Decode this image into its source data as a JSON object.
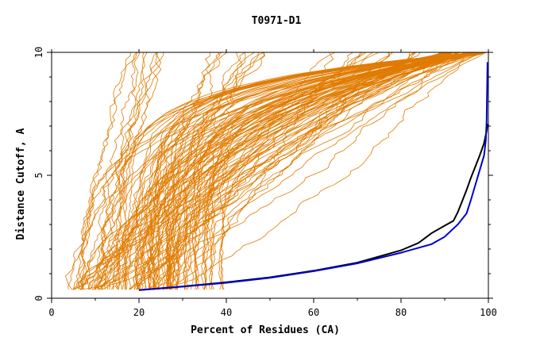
{
  "chart_data": {
    "type": "line",
    "title": "T0971-D1",
    "xlabel": "Percent of Residues (CA)",
    "ylabel": "Distance Cutoff, A",
    "xlim": [
      0,
      100
    ],
    "ylim": [
      0,
      10
    ],
    "x_ticks": [
      "0",
      "20",
      "40",
      "60",
      "80",
      "100"
    ],
    "y_ticks": [
      "0",
      "5",
      "10"
    ],
    "grid": false,
    "background_colors": {
      "orange": "#e07b00"
    },
    "highlight_series": [
      {
        "color": "#000000",
        "points": [
          [
            20,
            0.33
          ],
          [
            30,
            0.48
          ],
          [
            40,
            0.65
          ],
          [
            50,
            0.85
          ],
          [
            60,
            1.12
          ],
          [
            70,
            1.45
          ],
          [
            80,
            1.95
          ],
          [
            84,
            2.25
          ],
          [
            87,
            2.65
          ],
          [
            90,
            2.95
          ],
          [
            92,
            3.15
          ],
          [
            93,
            3.5
          ],
          [
            94,
            3.95
          ],
          [
            95,
            4.4
          ],
          [
            96,
            4.9
          ],
          [
            97,
            5.35
          ],
          [
            98,
            5.8
          ],
          [
            99,
            6.3
          ],
          [
            99.6,
            6.8
          ],
          [
            99.8,
            7.1
          ]
        ]
      },
      {
        "color": "#0000cc",
        "points": [
          [
            20,
            0.33
          ],
          [
            30,
            0.47
          ],
          [
            40,
            0.63
          ],
          [
            50,
            0.83
          ],
          [
            60,
            1.1
          ],
          [
            70,
            1.42
          ],
          [
            80,
            1.85
          ],
          [
            87,
            2.2
          ],
          [
            90,
            2.5
          ],
          [
            93,
            3.0
          ],
          [
            95,
            3.45
          ],
          [
            96,
            4.0
          ],
          [
            97,
            4.6
          ],
          [
            98,
            5.2
          ],
          [
            99,
            5.8
          ],
          [
            99.4,
            6.4
          ],
          [
            99.6,
            7.2
          ],
          [
            99.7,
            8.5
          ],
          [
            99.8,
            9.6
          ]
        ]
      }
    ]
  }
}
